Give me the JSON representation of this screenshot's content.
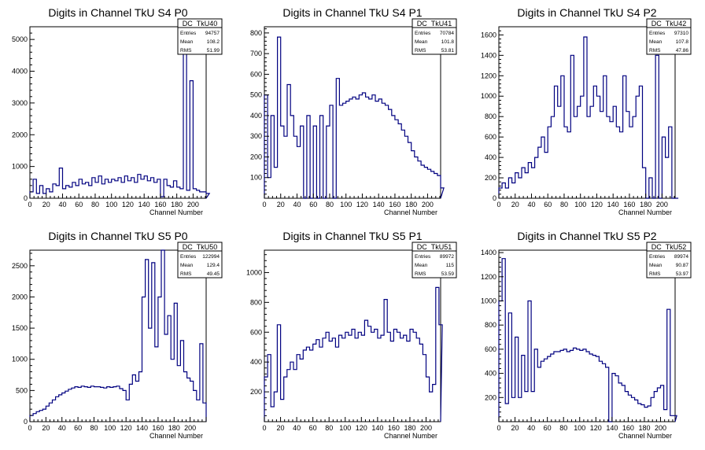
{
  "colors": {
    "line": "#000080",
    "axis": "#000000",
    "background": "#ffffff"
  },
  "chart_data": [
    {
      "type": "histogram",
      "title": "Digits in Channel TkU S4 P0",
      "xlabel": "Channel Number",
      "ylabel": "",
      "xlim": [
        0,
        216
      ],
      "ylim": [
        0,
        5400
      ],
      "xticks": [
        0,
        20,
        40,
        60,
        80,
        100,
        120,
        140,
        160,
        180,
        200
      ],
      "yticks": [
        0,
        1000,
        2000,
        3000,
        4000,
        5000
      ],
      "stats": {
        "name": "DC_TkU40",
        "rows": [
          {
            "label": "Entries",
            "value": "94757"
          },
          {
            "label": "Mean",
            "value": "108.2"
          },
          {
            "label": "RMS",
            "value": "51.99"
          }
        ]
      },
      "series": [
        {
          "x_start": 0,
          "bin_width": 4,
          "values": [
            200,
            600,
            150,
            400,
            150,
            300,
            200,
            450,
            400,
            950,
            300,
            400,
            350,
            500,
            400,
            600,
            450,
            500,
            400,
            650,
            500,
            700,
            450,
            600,
            500,
            600,
            550,
            650,
            500,
            700,
            550,
            650,
            500,
            750,
            600,
            700,
            550,
            650,
            500,
            600,
            50,
            600,
            400,
            350,
            550,
            350,
            300,
            5100,
            250,
            3700,
            300,
            250,
            200,
            200,
            150
          ]
        }
      ]
    },
    {
      "type": "histogram",
      "title": "Digits in Channel TkU S4 P1",
      "xlabel": "Channel Number",
      "ylabel": "",
      "xlim": [
        0,
        216
      ],
      "ylim": [
        0,
        830
      ],
      "xticks": [
        0,
        20,
        40,
        60,
        80,
        100,
        120,
        140,
        160,
        180,
        200
      ],
      "yticks": [
        100,
        200,
        300,
        400,
        500,
        600,
        700,
        800
      ],
      "stats": {
        "name": "DC_TkU41",
        "rows": [
          {
            "label": "Entries",
            "value": "70784"
          },
          {
            "label": "Mean",
            "value": "101.8"
          },
          {
            "label": "RMS",
            "value": "53.81"
          }
        ]
      },
      "series": [
        {
          "x_start": 0,
          "bin_width": 4,
          "values": [
            500,
            100,
            400,
            150,
            780,
            350,
            300,
            550,
            400,
            300,
            250,
            350,
            0,
            400,
            0,
            350,
            0,
            400,
            0,
            350,
            450,
            0,
            580,
            450,
            460,
            470,
            480,
            490,
            480,
            500,
            510,
            490,
            480,
            500,
            470,
            480,
            460,
            450,
            430,
            400,
            380,
            360,
            330,
            300,
            270,
            230,
            200,
            180,
            160,
            150,
            140,
            130,
            120,
            110,
            50
          ]
        }
      ]
    },
    {
      "type": "histogram",
      "title": "Digits in Channel TkU S4 P2",
      "xlabel": "Channel Number",
      "ylabel": "",
      "xlim": [
        0,
        216
      ],
      "ylim": [
        0,
        1680
      ],
      "xticks": [
        0,
        20,
        40,
        60,
        80,
        100,
        120,
        140,
        160,
        180,
        200
      ],
      "yticks": [
        0,
        200,
        400,
        600,
        800,
        1000,
        1200,
        1400,
        1600
      ],
      "stats": {
        "name": "DC_TkU42",
        "rows": [
          {
            "label": "Entries",
            "value": "97310"
          },
          {
            "label": "Mean",
            "value": "107.8"
          },
          {
            "label": "RMS",
            "value": "47.86"
          }
        ]
      },
      "series": [
        {
          "x_start": 0,
          "bin_width": 4,
          "values": [
            100,
            150,
            100,
            200,
            150,
            250,
            200,
            300,
            250,
            350,
            300,
            400,
            500,
            600,
            450,
            700,
            800,
            1100,
            900,
            1200,
            700,
            650,
            1400,
            800,
            900,
            1000,
            1580,
            800,
            900,
            1100,
            1000,
            850,
            1200,
            800,
            750,
            900,
            700,
            650,
            1200,
            850,
            700,
            800,
            1000,
            1100,
            300,
            0,
            200,
            0,
            1400,
            0,
            600,
            400,
            700,
            0,
            0
          ]
        }
      ]
    },
    {
      "type": "histogram",
      "title": "Digits in Channel TkU S5 P0",
      "xlabel": "Channel Number",
      "ylabel": "",
      "xlim": [
        0,
        220
      ],
      "ylim": [
        0,
        2750
      ],
      "xticks": [
        0,
        20,
        40,
        60,
        80,
        100,
        120,
        140,
        160,
        180,
        200
      ],
      "yticks": [
        0,
        500,
        1000,
        1500,
        2000,
        2500
      ],
      "stats": {
        "name": "DC_TkU50",
        "rows": [
          {
            "label": "Entries",
            "value": "122994"
          },
          {
            "label": "Mean",
            "value": "129.4"
          },
          {
            "label": "RMS",
            "value": "49.45"
          }
        ]
      },
      "series": [
        {
          "x_start": 0,
          "bin_width": 4,
          "values": [
            100,
            130,
            160,
            180,
            200,
            250,
            300,
            350,
            400,
            430,
            460,
            490,
            520,
            540,
            560,
            550,
            570,
            560,
            550,
            570,
            560,
            560,
            550,
            540,
            560,
            550,
            560,
            570,
            530,
            500,
            350,
            600,
            750,
            650,
            800,
            2000,
            2600,
            1500,
            2550,
            1200,
            2000,
            2800,
            1400,
            1700,
            1000,
            1900,
            900,
            1300,
            800,
            700,
            650,
            500,
            350,
            1250,
            300
          ]
        }
      ]
    },
    {
      "type": "histogram",
      "title": "Digits in Channel TkU S5 P1",
      "xlabel": "Channel Number",
      "ylabel": "",
      "xlim": [
        0,
        218
      ],
      "ylim": [
        0,
        1150
      ],
      "xticks": [
        0,
        20,
        40,
        60,
        80,
        100,
        120,
        140,
        160,
        180,
        200
      ],
      "yticks": [
        200,
        400,
        600,
        800,
        1000
      ],
      "stats": {
        "name": "DC_TkU51",
        "rows": [
          {
            "label": "Entries",
            "value": "89972"
          },
          {
            "label": "Mean",
            "value": "115"
          },
          {
            "label": "RMS",
            "value": "53.59"
          }
        ]
      },
      "series": [
        {
          "x_start": 0,
          "bin_width": 4,
          "values": [
            300,
            450,
            100,
            200,
            650,
            150,
            300,
            350,
            400,
            350,
            450,
            420,
            480,
            500,
            480,
            520,
            550,
            500,
            560,
            600,
            540,
            560,
            500,
            580,
            560,
            600,
            580,
            620,
            560,
            600,
            580,
            680,
            640,
            600,
            620,
            560,
            580,
            820,
            600,
            540,
            620,
            600,
            560,
            580,
            540,
            620,
            600,
            560,
            520,
            450,
            300,
            200,
            250,
            900,
            650
          ]
        }
      ]
    },
    {
      "type": "histogram",
      "title": "Digits in Channel TkU S5 P2",
      "xlabel": "Channel Number",
      "ylabel": "",
      "xlim": [
        0,
        218
      ],
      "ylim": [
        0,
        1420
      ],
      "xticks": [
        0,
        20,
        40,
        60,
        80,
        100,
        120,
        140,
        160,
        180,
        200
      ],
      "yticks": [
        200,
        400,
        600,
        800,
        1000,
        1200,
        1400
      ],
      "stats": {
        "name": "DC_TkU52",
        "rows": [
          {
            "label": "Entries",
            "value": "89974"
          },
          {
            "label": "Mean",
            "value": "90.87"
          },
          {
            "label": "RMS",
            "value": "53.97"
          }
        ]
      },
      "series": [
        {
          "x_start": 0,
          "bin_width": 4,
          "values": [
            1000,
            1350,
            150,
            900,
            200,
            700,
            200,
            550,
            250,
            1000,
            250,
            600,
            450,
            500,
            520,
            540,
            560,
            580,
            580,
            590,
            600,
            580,
            590,
            610,
            600,
            590,
            600,
            580,
            560,
            550,
            540,
            500,
            480,
            450,
            0,
            400,
            380,
            320,
            300,
            250,
            220,
            200,
            180,
            150,
            140,
            120,
            130,
            200,
            250,
            280,
            300,
            100,
            930,
            50,
            50
          ]
        }
      ]
    }
  ]
}
